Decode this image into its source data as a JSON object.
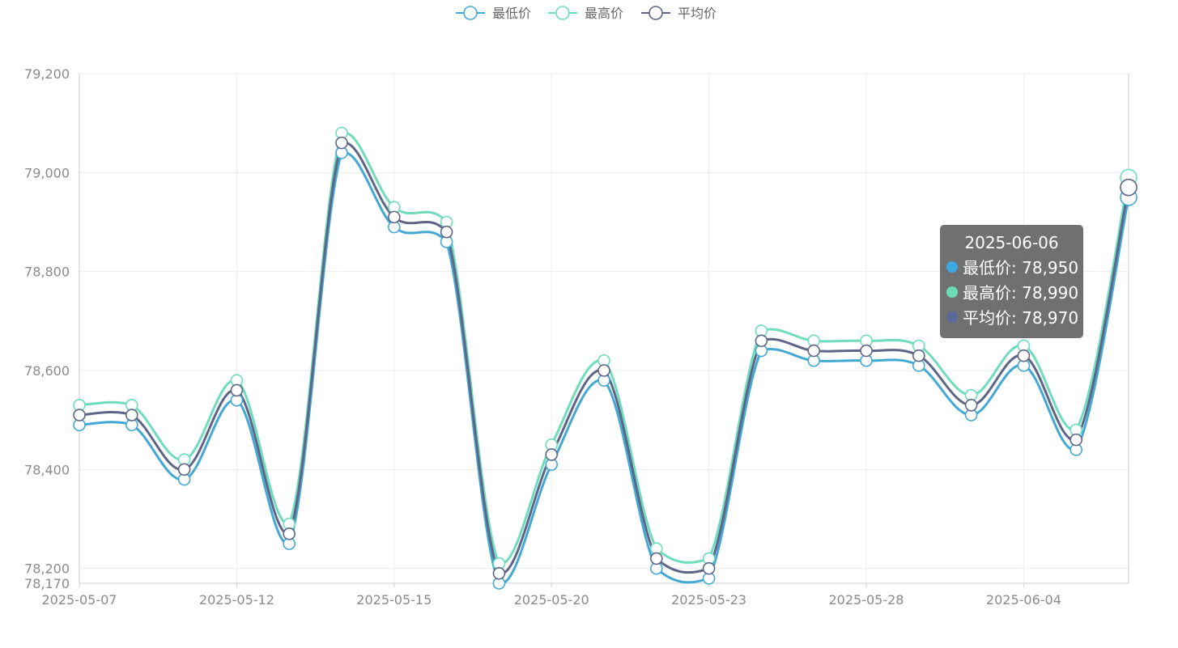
{
  "chart_data": {
    "type": "line",
    "smooth": true,
    "x": [
      "2025-05-07",
      "2025-05-08",
      "2025-05-09",
      "2025-05-12",
      "2025-05-13",
      "2025-05-14",
      "2025-05-15",
      "2025-05-16",
      "2025-05-19",
      "2025-05-20",
      "2025-05-21",
      "2025-05-22",
      "2025-05-23",
      "2025-05-26",
      "2025-05-27",
      "2025-05-28",
      "2025-05-29",
      "2025-06-03",
      "2025-06-04",
      "2025-06-05",
      "2025-06-06"
    ],
    "x_tick_labels": [
      "2025-05-07",
      "2025-05-12",
      "2025-05-15",
      "2025-05-20",
      "2025-05-23",
      "2025-05-28",
      "2025-06-04"
    ],
    "y_tick_labels": [
      "79,200",
      "79,000",
      "78,800",
      "78,600",
      "78,400",
      "78,200",
      "78,170"
    ],
    "ylim": [
      78170,
      79200
    ],
    "grid": true,
    "legend_position": "top-center",
    "series": [
      {
        "name": "最低价",
        "color": "#43a9d4",
        "values": [
          78490,
          78490,
          78380,
          78540,
          78250,
          79040,
          78890,
          78860,
          78170,
          78410,
          78580,
          78200,
          78180,
          78640,
          78620,
          78620,
          78610,
          78510,
          78610,
          78440,
          78950
        ]
      },
      {
        "name": "最高价",
        "color": "#6fdcbe",
        "values": [
          78530,
          78530,
          78420,
          78580,
          78290,
          79080,
          78930,
          78900,
          78210,
          78450,
          78620,
          78240,
          78220,
          78680,
          78660,
          78660,
          78650,
          78550,
          78650,
          78480,
          78990
        ]
      },
      {
        "name": "平均价",
        "color": "#5f6586",
        "values": [
          78510,
          78510,
          78400,
          78560,
          78270,
          79060,
          78910,
          78880,
          78190,
          78430,
          78600,
          78220,
          78200,
          78660,
          78640,
          78640,
          78630,
          78530,
          78630,
          78460,
          78970
        ]
      }
    ]
  },
  "tooltip": {
    "title": "2025-06-06",
    "rows": [
      {
        "text": "最低价: 78,950",
        "color": "#3ca9e0"
      },
      {
        "text": "最高价: 78,990",
        "color": "#6cdcb8"
      },
      {
        "text": "平均价: 78,970",
        "color": "#5b6a99"
      }
    ]
  }
}
